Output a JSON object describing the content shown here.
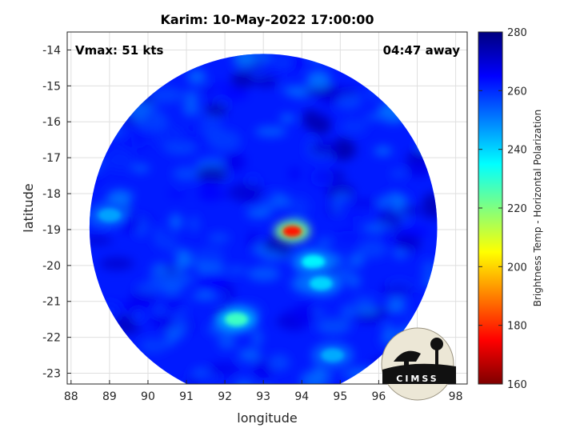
{
  "chart_data": {
    "type": "heatmap",
    "title": "Karim: 10-May-2022 17:00:00",
    "xlabel": "longitude",
    "ylabel": "latitude",
    "xlim": [
      87.9,
      98.3
    ],
    "ylim": [
      -23.3,
      -13.5
    ],
    "xticks": [
      88,
      89,
      90,
      91,
      92,
      93,
      94,
      95,
      96,
      97,
      98
    ],
    "yticks": [
      -14,
      -15,
      -16,
      -17,
      -18,
      -19,
      -20,
      -21,
      -22,
      -23
    ],
    "grid": true,
    "annotations": {
      "vmax": "Vmax: 51 kts",
      "time_away": "04:47 away"
    },
    "colorbar": {
      "label": "Brightness Temp - Horizontal Polarization",
      "range": [
        160,
        280
      ],
      "ticks": [
        280,
        260,
        240,
        220,
        200,
        180,
        160
      ],
      "colormap": "jet"
    },
    "swath": {
      "center_lon": 93.0,
      "center_lat": -18.95,
      "radius_deg": 4.52,
      "background_tb": 262
    },
    "features": [
      {
        "lon": 93.75,
        "lat": -19.05,
        "tb": 178
      },
      {
        "lon": 94.3,
        "lat": -19.9,
        "tb": 236
      },
      {
        "lon": 94.5,
        "lat": -20.5,
        "tb": 240
      },
      {
        "lon": 92.3,
        "lat": -21.5,
        "tb": 228
      },
      {
        "lon": 89.0,
        "lat": -18.6,
        "tb": 246
      },
      {
        "lon": 94.8,
        "lat": -22.5,
        "tb": 245
      }
    ],
    "logo": "CIMSS"
  }
}
